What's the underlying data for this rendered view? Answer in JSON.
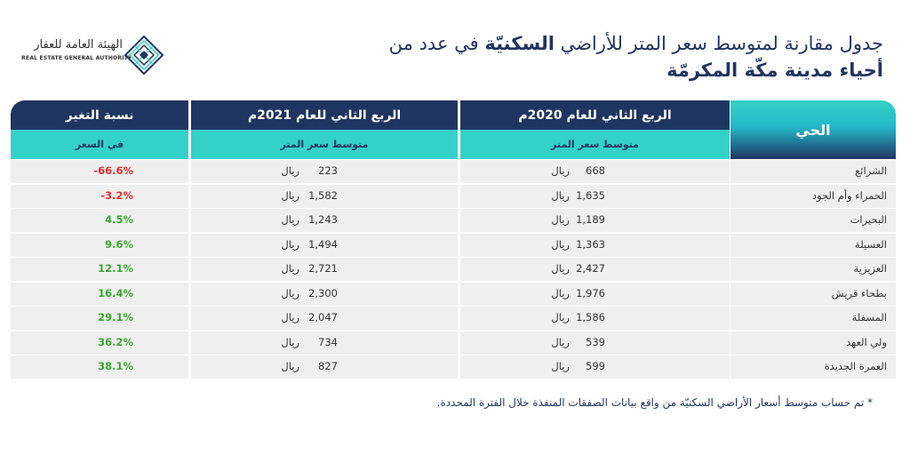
{
  "logo": {
    "arabic_name": "الهيئة العامة للعقار",
    "english_name": "REAL ESTATE GENERAL AUTHORITY",
    "mark_icon": "rega-lattice-icon"
  },
  "title": {
    "line1_part1": "جدول مقارنة لمتوسط سعر المتر للأراضي ",
    "line1_bold": "السكنيّة",
    "line1_part2": " في عدد من",
    "line2": "أحياء مدينة مكّة المكرمّة"
  },
  "table": {
    "headers": {
      "district": "الحي",
      "q2_2020": "الربع الثاني للعام 2020م",
      "q2_2021": "الربع الثاني للعام 2021م",
      "change": "نسبة التغير"
    },
    "subheaders": {
      "q2_2020": "متوسط سعر المتر",
      "q2_2021": "متوسط سعر المتر",
      "change": "في السعر"
    },
    "currency": "ريال",
    "rows": [
      {
        "district": "الشرائع",
        "v2020": "668",
        "v2021": "223",
        "change": "-66.6%"
      },
      {
        "district": "الحمراء وأم الجود",
        "v2020": "1,635",
        "v2021": "1,582",
        "change": "-3.2%"
      },
      {
        "district": "البحيرات",
        "v2020": "1,189",
        "v2021": "1,243",
        "change": "4.5%"
      },
      {
        "district": "العسيلة",
        "v2020": "1,363",
        "v2021": "1,494",
        "change": "9.6%"
      },
      {
        "district": "العزيزية",
        "v2020": "2,427",
        "v2021": "2,721",
        "change": "12.1%"
      },
      {
        "district": "بطحاء قريش",
        "v2020": "1,976",
        "v2021": "2,300",
        "change": "16.4%"
      },
      {
        "district": "المسفلة",
        "v2020": "1,586",
        "v2021": "2,047",
        "change": "29.1%"
      },
      {
        "district": "ولي العهد",
        "v2020": "539",
        "v2021": "734",
        "change": "36.2%"
      },
      {
        "district": "العمرة الجديدة",
        "v2020": "599",
        "v2021": "827",
        "change": "38.1%"
      }
    ]
  },
  "footnote": "* تم حساب متوسط أسعار الأراضي السكنيّة من واقع بيانات الصفقات المنفذة خلال الفترة المحددة.",
  "colors": {
    "navy": "#1f3561",
    "teal": "#34d1c8",
    "row_bg": "#efefef",
    "negative": "#e02b2b",
    "positive": "#3aa62e"
  }
}
